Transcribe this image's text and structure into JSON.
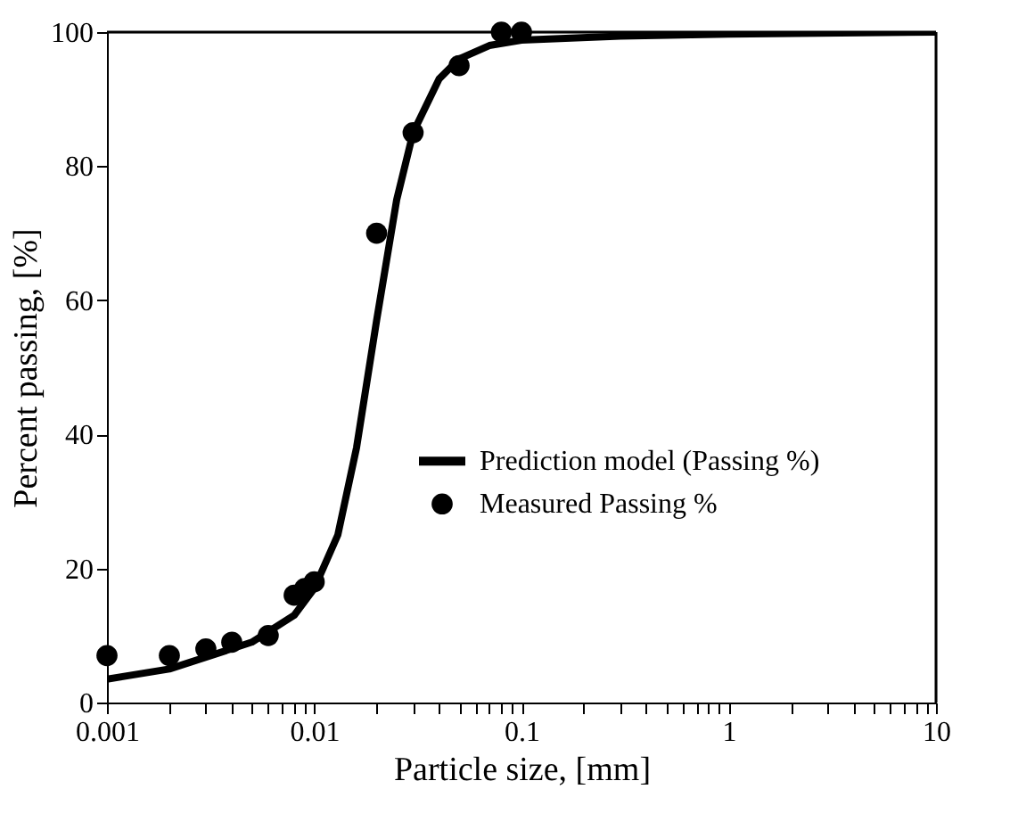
{
  "chart_data": {
    "type": "scatter",
    "xlabel": "Particle size, [mm]",
    "ylabel": "Percent passing, [%]",
    "log": "x",
    "xlim": [
      0.001,
      10
    ],
    "ylim": [
      0,
      100
    ],
    "xticks": [
      0.001,
      {
        "value": 0.002,
        "label": null
      },
      {
        "value": 0.003,
        "label": null
      },
      {
        "value": 0.004,
        "label": null
      },
      {
        "value": 0.005,
        "label": null
      },
      {
        "value": 0.006,
        "label": null
      },
      {
        "value": 0.007,
        "label": null
      },
      {
        "value": 0.008,
        "label": null
      },
      {
        "value": 0.009,
        "label": null
      },
      0.01,
      {
        "value": 0.02,
        "label": null
      },
      {
        "value": 0.03,
        "label": null
      },
      {
        "value": 0.04,
        "label": null
      },
      {
        "value": 0.05,
        "label": null
      },
      {
        "value": 0.06,
        "label": null
      },
      {
        "value": 0.07,
        "label": null
      },
      {
        "value": 0.08,
        "label": null
      },
      {
        "value": 0.09,
        "label": null
      },
      0.1,
      {
        "value": 0.2,
        "label": null
      },
      {
        "value": 0.3,
        "label": null
      },
      {
        "value": 0.4,
        "label": null
      },
      {
        "value": 0.5,
        "label": null
      },
      {
        "value": 0.6,
        "label": null
      },
      {
        "value": 0.7,
        "label": null
      },
      {
        "value": 0.8,
        "label": null
      },
      {
        "value": 0.9,
        "label": null
      },
      1,
      {
        "value": 2,
        "label": null
      },
      {
        "value": 3,
        "label": null
      },
      {
        "value": 4,
        "label": null
      },
      {
        "value": 5,
        "label": null
      },
      {
        "value": 6,
        "label": null
      },
      {
        "value": 7,
        "label": null
      },
      {
        "value": 8,
        "label": null
      },
      {
        "value": 9,
        "label": null
      },
      10
    ],
    "yticks": [
      0,
      20,
      40,
      60,
      80,
      100
    ],
    "grid": false,
    "legend": "right",
    "series": [
      {
        "name": "Prediction model (Passing %)",
        "type": "line",
        "color": "#000000",
        "marker": "none",
        "line_style": "solid",
        "x": [
          0.001,
          0.002,
          0.005,
          0.008,
          0.01,
          0.013,
          0.016,
          0.02,
          0.025,
          0.03,
          0.04,
          0.05,
          0.07,
          0.1,
          0.3,
          1,
          10
        ],
        "values": [
          3.5,
          5,
          9,
          13,
          17,
          25,
          38,
          57,
          75,
          85,
          93,
          96,
          98,
          98.8,
          99.4,
          99.7,
          100
        ]
      },
      {
        "name": "Measured Passing %",
        "color": "#000000",
        "marker": "circle",
        "x": [
          0.001,
          0.002,
          0.003,
          0.004,
          0.006,
          0.008,
          0.009,
          0.01,
          0.02,
          0.03,
          0.05,
          0.08,
          0.1
        ],
        "values": [
          7,
          7,
          8,
          9,
          10,
          16,
          17,
          18,
          70,
          85,
          95,
          100,
          100
        ]
      }
    ]
  }
}
